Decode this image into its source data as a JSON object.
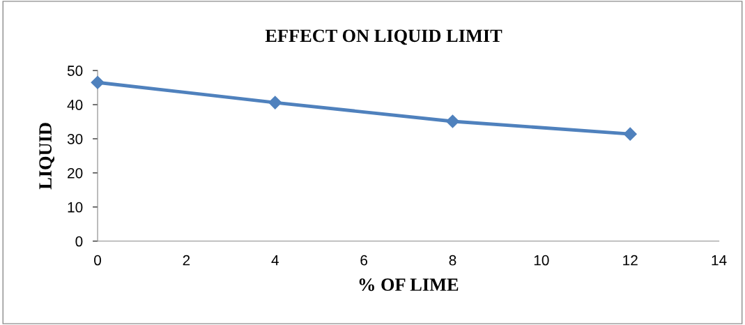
{
  "chart_data": {
    "type": "line",
    "title": "EFFECT ON LIQUID LIMIT",
    "xlabel": "% OF LIME",
    "ylabel": "LIQUID",
    "x": [
      0,
      4,
      8,
      12
    ],
    "series": [
      {
        "color": "#4f81bd",
        "values": [
          46.5,
          40.6,
          35.1,
          31.4
        ]
      }
    ],
    "xlim": [
      0,
      14
    ],
    "xticks": [
      0,
      2,
      4,
      6,
      8,
      10,
      12,
      14
    ],
    "ylim": [
      0,
      50
    ],
    "yticks": [
      0,
      10,
      20,
      30,
      40,
      50
    ],
    "grid": false,
    "legend": false,
    "marker": "diamond",
    "line_style": "solid"
  }
}
